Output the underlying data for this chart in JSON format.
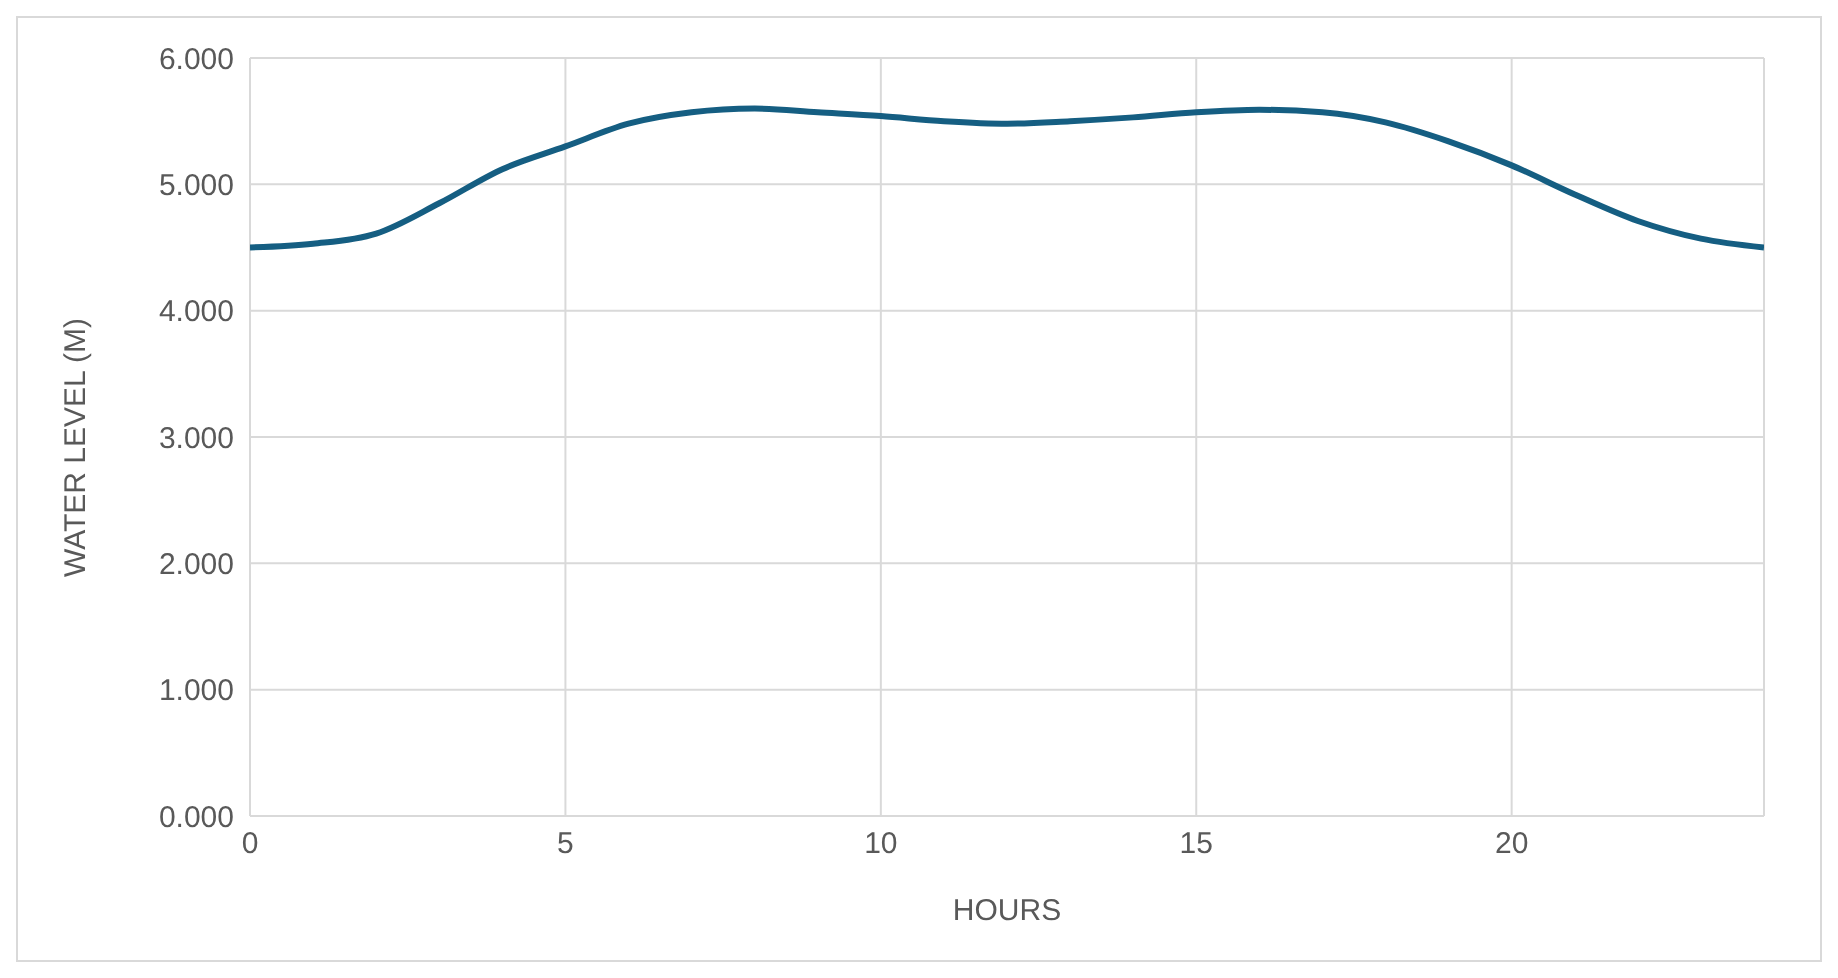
{
  "chart_data": {
    "type": "line",
    "xlabel": "HOURS",
    "ylabel": "WATER LEVEL (M)",
    "x": [
      0,
      1,
      2,
      3,
      4,
      5,
      6,
      7,
      8,
      9,
      10,
      11,
      12,
      13,
      14,
      15,
      16,
      17,
      18,
      19,
      20,
      21,
      22,
      23,
      24
    ],
    "series": [
      {
        "color": "#155e82",
        "values": [
          4.5,
          4.53,
          4.61,
          4.85,
          5.12,
          5.3,
          5.48,
          5.57,
          5.6,
          5.57,
          5.54,
          5.5,
          5.48,
          5.5,
          5.53,
          5.57,
          5.59,
          5.57,
          5.49,
          5.34,
          5.15,
          4.92,
          4.71,
          4.57,
          4.5
        ]
      }
    ],
    "xlim": [
      0,
      24
    ],
    "xticks": [
      0,
      5,
      10,
      15,
      20
    ],
    "ylim": [
      0,
      6
    ],
    "yticks": [
      {
        "value": 0,
        "label": "0.000"
      },
      {
        "value": 1,
        "label": "1.000"
      },
      {
        "value": 2,
        "label": "2.000"
      },
      {
        "value": 3,
        "label": "3.000"
      },
      {
        "value": 4,
        "label": "4.000"
      },
      {
        "value": 5,
        "label": "5.000"
      },
      {
        "value": 6,
        "label": "6.000"
      }
    ],
    "grid": true,
    "legend": false,
    "marker": "none",
    "line_style": "solid"
  }
}
